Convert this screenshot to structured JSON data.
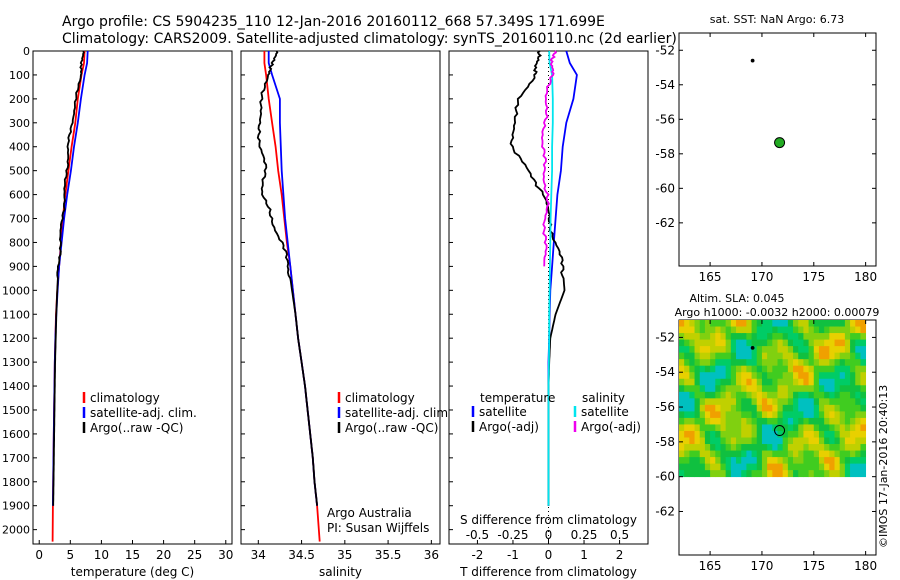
{
  "header": {
    "line1": "Argo profile: CS 5904235_110 12-Jan-2016 20160112_668 57.349S 171.699E",
    "line2": "Climatology: CARS2009. Satellite-adjusted climatology: synTS_20160110.nc (2d earlier)"
  },
  "side_label": "©IMOS 17-Jan-2016 20:40:13",
  "colors": {
    "climatology": "#ff0000",
    "satellite": "#0000ff",
    "argo": "#000000",
    "sat_salinity": "#00e5ee",
    "argo_salinity": "#ee00ee",
    "float_marker": "#22aa22"
  },
  "chart_data": [
    {
      "id": "temperature",
      "type": "line",
      "xlabel": "temperature (deg C)",
      "ylabel": "",
      "xlim": [
        -1,
        31
      ],
      "ylim": [
        2060,
        0
      ],
      "xticks": [
        0,
        5,
        10,
        15,
        20,
        25,
        30
      ],
      "yticks": [
        0,
        100,
        200,
        300,
        400,
        500,
        600,
        700,
        800,
        900,
        1000,
        1100,
        1200,
        1300,
        1400,
        1500,
        1600,
        1700,
        1800,
        1900,
        2000
      ],
      "legend": {
        "placement": "bottom-center",
        "entries": [
          "climatology",
          "satellite-adj. clim.",
          "Argo(..raw -QC)"
        ]
      },
      "series": [
        {
          "name": "climatology",
          "color": "#ff0000",
          "x": [
            7.3,
            7.2,
            6.8,
            6.2,
            5.8,
            5.2,
            4.7,
            4.2,
            3.8,
            3.5,
            3.2,
            2.9,
            2.7,
            2.6,
            2.5,
            2.45,
            2.4,
            2.35,
            2.3,
            2.25,
            2.2,
            2.15
          ],
          "depth": [
            0,
            50,
            100,
            200,
            300,
            400,
            500,
            600,
            700,
            800,
            900,
            1000,
            1100,
            1200,
            1300,
            1400,
            1500,
            1600,
            1700,
            1800,
            1900,
            2050
          ]
        },
        {
          "name": "satellite-adj. clim.",
          "color": "#0000ff",
          "x": [
            7.8,
            7.7,
            7.3,
            6.7,
            6.2,
            5.6,
            5.1,
            4.5,
            4.0,
            3.6,
            3.2,
            2.95,
            2.75,
            2.6,
            2.5,
            2.45,
            2.4,
            2.35,
            2.3,
            2.25,
            2.2
          ],
          "depth": [
            0,
            50,
            100,
            200,
            300,
            400,
            500,
            600,
            700,
            800,
            900,
            1000,
            1100,
            1200,
            1300,
            1400,
            1500,
            1600,
            1700,
            1800,
            1900
          ]
        },
        {
          "name": "Argo(..raw -QC)",
          "color": "#000000",
          "x": [
            7.0,
            6.9,
            6.6,
            6.0,
            5.2,
            4.7,
            4.4,
            4.1,
            3.7,
            3.4,
            3.1,
            2.9,
            2.75,
            2.65,
            2.55,
            2.5,
            2.45,
            2.4,
            2.35,
            2.3,
            2.25
          ],
          "depth": [
            0,
            50,
            100,
            200,
            300,
            400,
            500,
            600,
            700,
            800,
            900,
            1000,
            1100,
            1200,
            1300,
            1400,
            1500,
            1600,
            1700,
            1800,
            1900
          ]
        }
      ]
    },
    {
      "id": "salinity",
      "type": "line",
      "xlabel": "salinity",
      "xlim": [
        33.8,
        36.1
      ],
      "ylim": [
        2060,
        0
      ],
      "xticks": [
        34,
        34.5,
        35,
        35.5,
        36
      ],
      "legend": {
        "placement": "bottom-center",
        "entries": [
          "climatology",
          "satellite-adj. clim.",
          "Argo(..raw -QC)"
        ]
      },
      "annotation": [
        "Argo Australia",
        "PI: Susan Wijffels"
      ],
      "series": [
        {
          "name": "climatology",
          "color": "#ff0000",
          "x": [
            34.07,
            34.07,
            34.09,
            34.12,
            34.16,
            34.2,
            34.23,
            34.27,
            34.3,
            34.33,
            34.37,
            34.4,
            34.43,
            34.46,
            34.5,
            34.54,
            34.57,
            34.6,
            34.63,
            34.65,
            34.68,
            34.71
          ],
          "depth": [
            0,
            50,
            100,
            200,
            300,
            400,
            500,
            600,
            700,
            800,
            900,
            1000,
            1100,
            1200,
            1300,
            1400,
            1500,
            1600,
            1700,
            1800,
            1900,
            2050
          ]
        },
        {
          "name": "satellite-adj. clim.",
          "color": "#0000ff",
          "x": [
            34.12,
            34.12,
            34.16,
            34.25,
            34.25,
            34.26,
            34.27,
            34.29,
            34.31,
            34.34,
            34.37,
            34.4,
            34.43,
            34.46,
            34.5,
            34.54,
            34.57,
            34.6,
            34.63,
            34.65,
            34.68
          ],
          "depth": [
            0,
            50,
            100,
            200,
            300,
            400,
            500,
            600,
            700,
            800,
            900,
            1000,
            1100,
            1200,
            1300,
            1400,
            1500,
            1600,
            1700,
            1800,
            1900
          ]
        },
        {
          "name": "Argo(..raw -QC)",
          "color": "#000000",
          "x": [
            34.2,
            34.18,
            34.1,
            34.05,
            34.0,
            34.03,
            34.08,
            34.05,
            34.15,
            34.27,
            34.35,
            34.39,
            34.43,
            34.46,
            34.5,
            34.54,
            34.57,
            34.6,
            34.63,
            34.65,
            34.68
          ],
          "depth": [
            0,
            50,
            100,
            200,
            300,
            400,
            500,
            600,
            700,
            800,
            900,
            1000,
            1100,
            1200,
            1300,
            1400,
            1500,
            1600,
            1700,
            1800,
            1900
          ]
        }
      ]
    },
    {
      "id": "difference",
      "type": "line",
      "xlabel": "T difference from climatology",
      "xlabel_top": "S difference from climatology",
      "xlim": [
        -2.8,
        2.8
      ],
      "ylim": [
        2060,
        0
      ],
      "xticks": [
        -2,
        -1,
        0,
        1,
        2
      ],
      "xticks_s": [
        -0.5,
        -0.25,
        0,
        0.25,
        0.5
      ],
      "legend": {
        "placement": "bottom-center",
        "headers": [
          "temperature",
          "salinity"
        ],
        "entries": [
          "satellite",
          "Argo(-adj)",
          "satellite",
          "Argo(-adj)"
        ]
      },
      "series": [
        {
          "name": "temperature satellite",
          "color": "#0000ff",
          "x": [
            0.5,
            0.6,
            0.8,
            0.7,
            0.5,
            0.4,
            0.35,
            0.25,
            0.2,
            0.15,
            0.1,
            0.05,
            0.03,
            0.02,
            0.0,
            0.0,
            0.0,
            0.0,
            0.0,
            0.0,
            0.0
          ],
          "depth": [
            0,
            50,
            100,
            200,
            300,
            400,
            500,
            600,
            700,
            800,
            900,
            1000,
            1100,
            1200,
            1300,
            1400,
            1500,
            1600,
            1700,
            1800,
            1900
          ]
        },
        {
          "name": "temperature Argo(-adj)",
          "color": "#000000",
          "x": [
            -0.3,
            -0.3,
            -0.4,
            -0.8,
            -1.0,
            -1.0,
            -0.6,
            -0.1,
            0.0,
            0.2,
            0.4,
            0.45,
            0.2,
            0.05,
            0.02,
            0.0,
            0.0,
            0.0,
            0.0,
            0.0,
            0.0
          ],
          "depth": [
            0,
            50,
            100,
            200,
            300,
            400,
            500,
            600,
            700,
            800,
            900,
            1000,
            1100,
            1200,
            1300,
            1400,
            1500,
            1600,
            1700,
            1800,
            1900
          ]
        },
        {
          "name": "salinity satellite",
          "color": "#00e5ee",
          "x": [
            0.02,
            0.03,
            0.1,
            0.12,
            0.12,
            0.1,
            0.1,
            0.08,
            0.06,
            0.05,
            0.04,
            0.03,
            0.02,
            0.02,
            0.01,
            0.0,
            0.0,
            0.0,
            0.0,
            0.0,
            0.0
          ],
          "depth": [
            0,
            50,
            100,
            200,
            300,
            400,
            500,
            600,
            700,
            800,
            900,
            1000,
            1100,
            1200,
            1300,
            1400,
            1500,
            1600,
            1700,
            1800,
            1900
          ]
        },
        {
          "name": "salinity Argo(-adj)",
          "color": "#ee00ee",
          "x": [
            0.15,
            0.12,
            0.08,
            -0.05,
            -0.12,
            -0.15,
            -0.12,
            -0.05,
            -0.08,
            -0.1,
            -0.12
          ],
          "depth": [
            0,
            50,
            100,
            200,
            300,
            400,
            500,
            600,
            700,
            800,
            900
          ]
        }
      ]
    },
    {
      "id": "sst_map",
      "type": "scatter",
      "title": "sat. SST: NaN Argo: 6.73",
      "xlim": [
        162,
        181
      ],
      "ylim": [
        -64.5,
        -51
      ],
      "xticks": [
        165,
        170,
        175,
        180
      ],
      "yticks": [
        -52,
        -54,
        -56,
        -58,
        -60,
        -62
      ],
      "points": [
        {
          "name": "earlier position",
          "lon": 169.1,
          "lat": -52.6,
          "size": "small",
          "color": "#000000"
        },
        {
          "name": "float position",
          "lon": 171.7,
          "lat": -57.35,
          "size": "large",
          "color": "#22aa22"
        }
      ]
    },
    {
      "id": "sla_map",
      "type": "heatmap",
      "title_line1": "Altim. SLA: 0.045",
      "title_line2": "Argo h1000: -0.0032 h2000: 0.00079",
      "xlim": [
        162,
        181
      ],
      "ylim": [
        -64.5,
        -51
      ],
      "xticks": [
        165,
        170,
        175,
        180
      ],
      "yticks": [
        -52,
        -54,
        -56,
        -58,
        -60,
        -62
      ],
      "field_extent": {
        "lon": [
          162,
          180
        ],
        "lat": [
          -60,
          -51
        ]
      },
      "points": [
        {
          "name": "earlier position",
          "lon": 169.1,
          "lat": -52.6,
          "size": "small",
          "color": "#000000"
        },
        {
          "name": "float position",
          "lon": 171.7,
          "lat": -57.35,
          "size": "large",
          "color": "none"
        }
      ]
    }
  ]
}
